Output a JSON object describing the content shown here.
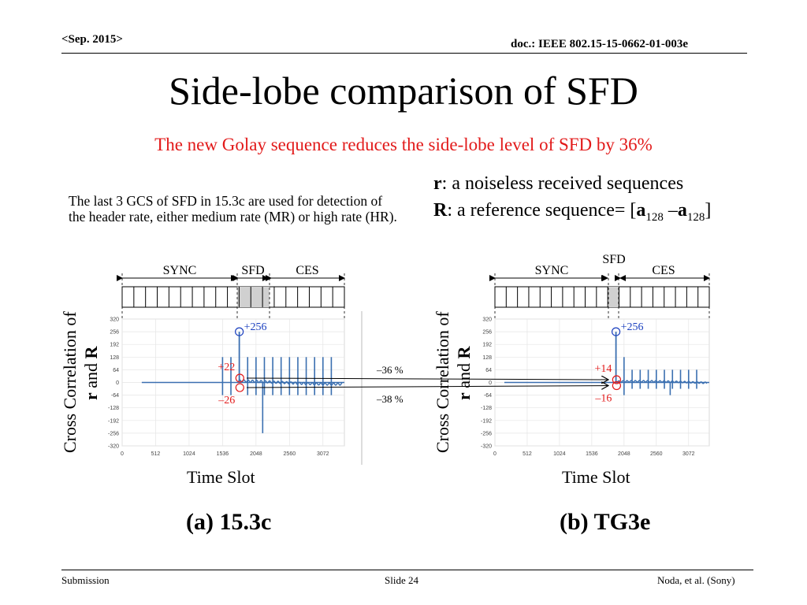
{
  "header": {
    "date": "<Sep. 2015>",
    "doc": "doc.: IEEE 802.15-15-0662-01-003e"
  },
  "title": "Side-lobe comparison of SFD",
  "subtitle": "The new Golay sequence reduces the side-lobe level of SFD by 36%",
  "description": "The last 3 GCS of SFD in 15.3c are used for detection of the header rate, either medium rate (MR) or high rate (HR).",
  "definitions": {
    "r_sym": "r",
    "r_text": ": a noiseless received sequences",
    "R_sym": "R",
    "R_text": ": a reference sequence= [",
    "a": "a",
    "sub": "128",
    "minus": " –",
    "close": "]"
  },
  "axis_label": {
    "y_prefix": "Cross Correlation of",
    "y_r": "r",
    "y_and": " and ",
    "y_R": "R",
    "x": "Time Slot"
  },
  "captions": {
    "a": "(a) 15.3c",
    "b": "(b) TG3e"
  },
  "footer": {
    "left": "Submission",
    "center": "Slide 24",
    "right": "Noda, et al. (Sony)"
  },
  "chart_data": [
    {
      "type": "line",
      "name": "(a) 15.3c",
      "frame_labels": [
        "SYNC",
        "SFD",
        "CES"
      ],
      "y_ticks": [
        320,
        256,
        192,
        128,
        64,
        0,
        -64,
        -128,
        -192,
        -256,
        -320
      ],
      "x_ticks": [
        0,
        512,
        1024,
        1536,
        2048,
        2560,
        3072
      ],
      "ylim": [
        -320,
        320
      ],
      "xlim": [
        0,
        3400
      ],
      "peak": {
        "x": 1792,
        "y": 256,
        "label": "+256"
      },
      "sidelobe_max": {
        "x": 1800,
        "y": 22,
        "label": "+22"
      },
      "sidelobe_min": {
        "x": 1800,
        "y": -26,
        "label": "–26"
      },
      "spike_x": [
        1536,
        1664,
        1920,
        2048,
        2176,
        2304,
        2432,
        2560,
        2688,
        2816,
        2944,
        3072,
        3200
      ],
      "spike_y": [
        128,
        128,
        128,
        128,
        128,
        128,
        128,
        128,
        128,
        128,
        128,
        128,
        128
      ],
      "neg_spike": {
        "x": 2150,
        "y": -256
      }
    },
    {
      "type": "line",
      "name": "(b) TG3e",
      "frame_labels": [
        "SYNC",
        "SFD",
        "CES"
      ],
      "y_ticks": [
        320,
        256,
        192,
        128,
        64,
        0,
        -64,
        -128,
        -192,
        -256,
        -320
      ],
      "x_ticks": [
        0,
        512,
        1024,
        1536,
        2048,
        2560,
        3072
      ],
      "ylim": [
        -320,
        320
      ],
      "xlim": [
        0,
        3400
      ],
      "peak": {
        "x": 1920,
        "y": 256,
        "label": "+256"
      },
      "sidelobe_max": {
        "x": 1930,
        "y": 14,
        "label": "+14"
      },
      "sidelobe_min": {
        "x": 1930,
        "y": -16,
        "label": "–16"
      },
      "spike_x": [
        2048,
        2176,
        2304,
        2432,
        2560,
        2688,
        2816,
        2944,
        3072,
        3200
      ],
      "spike_y": [
        128,
        64,
        64,
        64,
        64,
        64,
        64,
        64,
        64,
        64
      ],
      "neg_spike": {
        "x": 2780,
        "y": -64
      }
    }
  ],
  "reduction": {
    "pos": "–36 %",
    "neg": "–38 %"
  }
}
